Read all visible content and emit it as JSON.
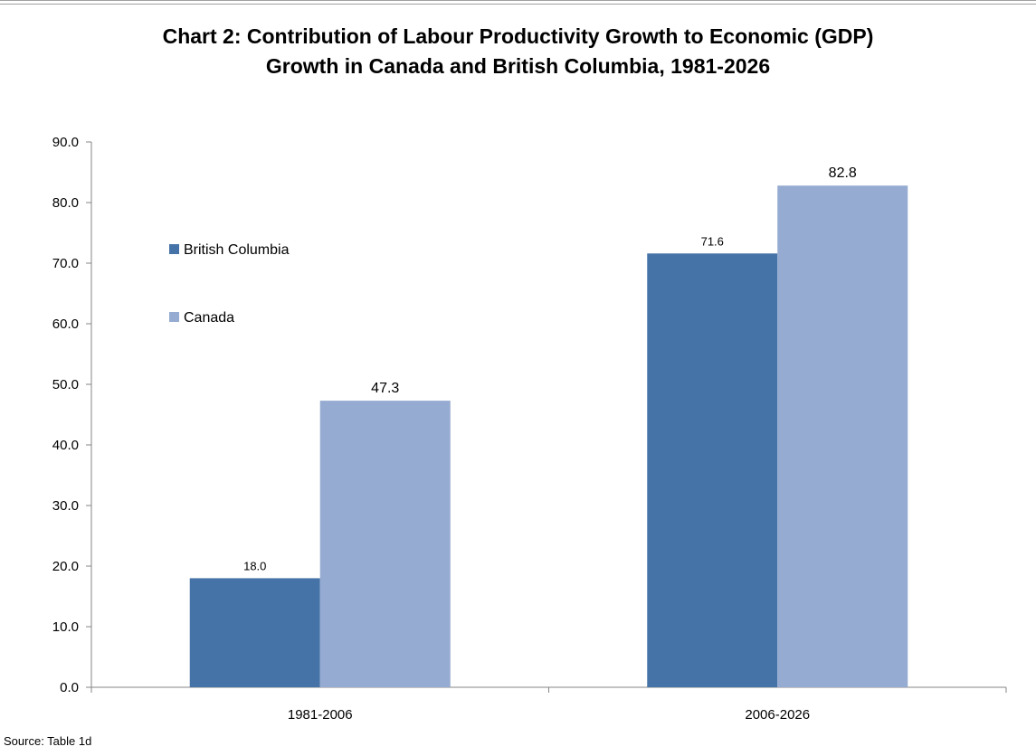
{
  "title_line1": "Chart 2: Contribution of Labour Productivity Growth to Economic (GDP)",
  "title_line2": "Growth in Canada and British Columbia, 1981-2026",
  "source": "Source: Table 1d",
  "colors": {
    "British Columbia": "#4673a7",
    "Canada": "#95abd1"
  },
  "chart_data": {
    "type": "bar",
    "title": "Chart 2: Contribution of Labour Productivity Growth to Economic (GDP) Growth in Canada and British Columbia, 1981-2026",
    "categories": [
      "1981-2006",
      "2006-2026"
    ],
    "series": [
      {
        "name": "British Columbia",
        "values": [
          18.0,
          71.6
        ]
      },
      {
        "name": "Canada",
        "values": [
          47.3,
          82.8
        ]
      }
    ],
    "ylim": [
      0,
      90
    ],
    "yticks": [
      "0.0",
      "10.0",
      "20.0",
      "30.0",
      "40.0",
      "50.0",
      "60.0",
      "70.0",
      "80.0",
      "90.0"
    ],
    "value_labels": [
      [
        "18.0",
        "71.6"
      ],
      [
        "47.3",
        "82.8"
      ]
    ],
    "legend": [
      "British Columbia",
      "Canada"
    ],
    "legend_position": "upper-left inside plot",
    "grid": false
  }
}
